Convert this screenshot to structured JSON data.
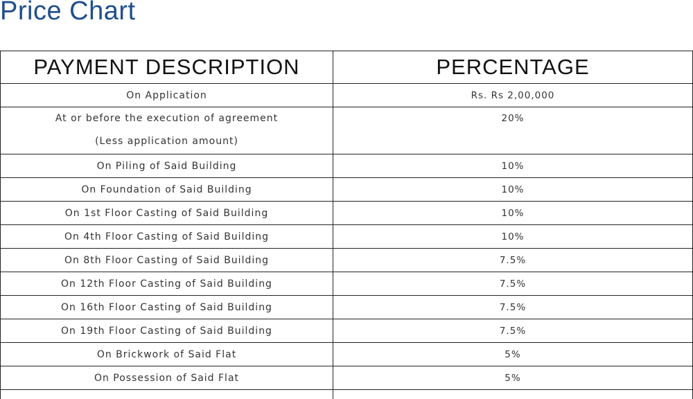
{
  "title": "Price Chart",
  "table": {
    "headers": [
      "PAYMENT DESCRIPTION",
      "PERCENTAGE"
    ],
    "rows": [
      {
        "description": "On Application",
        "description_line2": "",
        "percentage": "Rs. Rs 2,00,000"
      },
      {
        "description": "At or before the execution of agreement",
        "description_line2": "(Less application amount)",
        "percentage": "20%"
      },
      {
        "description": "On Piling of Said Building",
        "description_line2": "",
        "percentage": "10%"
      },
      {
        "description": "On Foundation of Said Building",
        "description_line2": "",
        "percentage": "10%"
      },
      {
        "description": "On 1st Floor Casting of Said Building",
        "description_line2": "",
        "percentage": "10%"
      },
      {
        "description": "On 4th Floor Casting of Said Building",
        "description_line2": "",
        "percentage": "10%"
      },
      {
        "description": "On 8th Floor Casting of Said Building",
        "description_line2": "",
        "percentage": "7.5%"
      },
      {
        "description": "On 12th Floor Casting of Said Building",
        "description_line2": "",
        "percentage": "7.5%"
      },
      {
        "description": "On 16th Floor Casting of Said Building",
        "description_line2": "",
        "percentage": "7.5%"
      },
      {
        "description": "On 19th Floor Casting of Said Building",
        "description_line2": "",
        "percentage": "7.5%"
      },
      {
        "description": "On Brickwork of Said Flat",
        "description_line2": "",
        "percentage": "5%"
      },
      {
        "description": "On Possession of Said Flat",
        "description_line2": "",
        "percentage": "5%"
      },
      {
        "description": "",
        "description_line2": "",
        "percentage": ""
      }
    ]
  },
  "colors": {
    "title": "#1f4e8c",
    "border": "#222222",
    "text": "#333333"
  }
}
